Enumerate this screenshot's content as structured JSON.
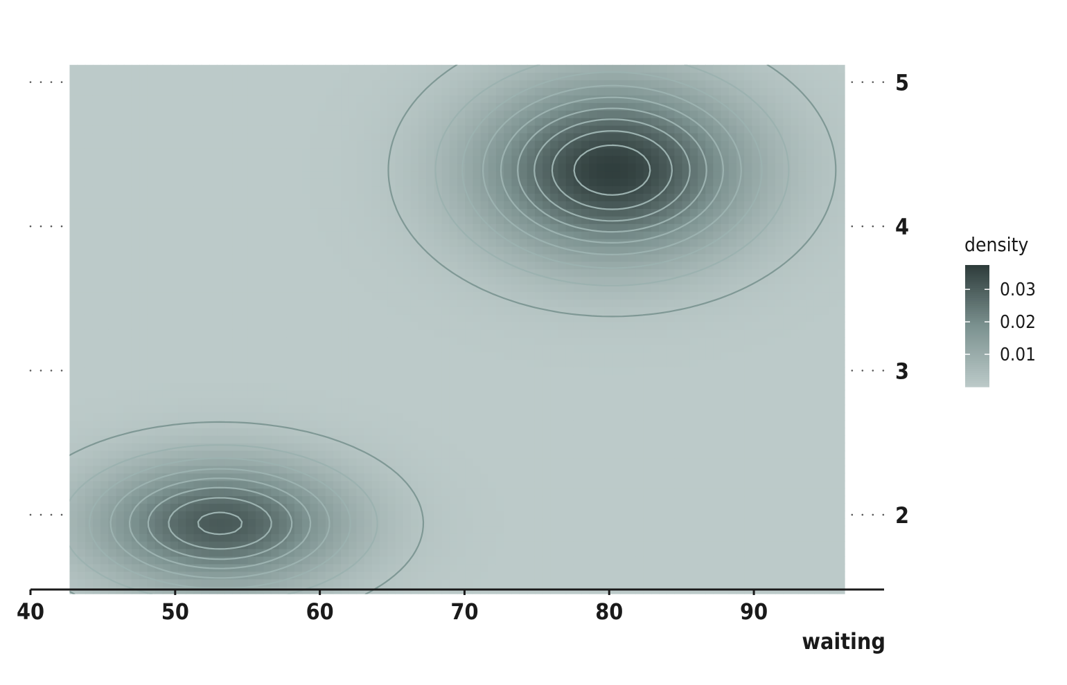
{
  "chart_data": {
    "type": "heatmap",
    "title": "",
    "xlabel": "waiting",
    "ylabel": "",
    "xlim": [
      40,
      99
    ],
    "ylim": [
      1.4,
      5.2
    ],
    "data_extent": {
      "x": [
        42.7,
        96.3
      ],
      "y": [
        1.45,
        5.12
      ]
    },
    "x_ticks": [
      40,
      50,
      60,
      70,
      80,
      90
    ],
    "y_ticks": [
      2,
      3,
      4,
      5
    ],
    "y_axis_position": "right",
    "grid": {
      "horizontal": "dotted",
      "vertical": false
    },
    "density_peaks": [
      {
        "waiting": 80.2,
        "eruptions": 4.39,
        "density": 0.037
      },
      {
        "waiting": 53.1,
        "eruptions": 1.94,
        "density": 0.031
      }
    ],
    "contour_levels": [
      0.002,
      0.006,
      0.01,
      0.014,
      0.018,
      0.022,
      0.026,
      0.03,
      0.034
    ],
    "legend": {
      "title": "density",
      "position": "right",
      "ticks": [
        "0.01",
        "0.02",
        "0.03"
      ],
      "tick_values": [
        0.01,
        0.02,
        0.03
      ],
      "range": [
        0.0,
        0.0375
      ]
    },
    "colors": {
      "low": "#bccac9",
      "mid": "#7c9290",
      "high": "#2e3c3b",
      "contour_outer": "#7f9895",
      "contour_inner": "#9cb2b0",
      "grid": "#5a5a5a",
      "axis": "#1a1a1a"
    }
  }
}
